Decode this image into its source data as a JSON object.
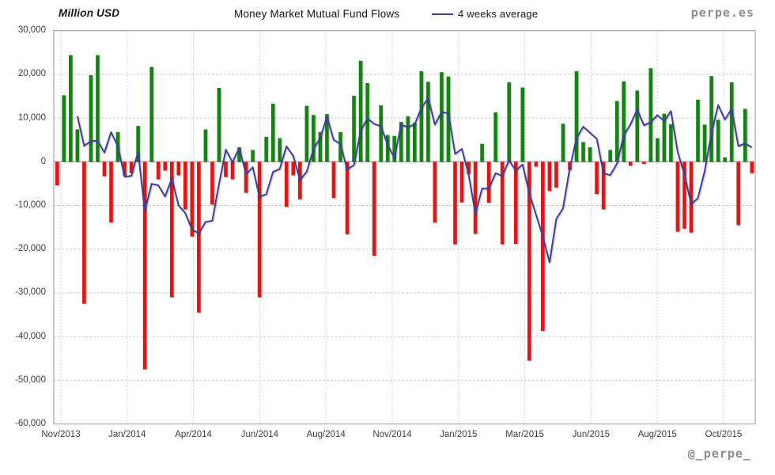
{
  "header": {
    "units_label": "Million USD",
    "title": "Money Market Mutual Fund Flows",
    "legend_label": "4 weeks average",
    "watermark": "perpe.es",
    "handle": "@_perpe_"
  },
  "chart_data": {
    "type": "bar",
    "title": "Money Market Mutual Fund Flows",
    "ylabel": "Million USD",
    "ylim": [
      -60000,
      30000
    ],
    "y_tick_step": 10000,
    "y_tick_labels": [
      "30,000",
      "20,000",
      "10,000",
      "0",
      "-10,000",
      "-20,000",
      "-30,000",
      "-40,000",
      "-50,000",
      "-60,000"
    ],
    "x_tick_labels": [
      "Nov/2013",
      "Jan/2014",
      "Apr/2014",
      "Jun/2014",
      "Aug/2014",
      "Nov/2014",
      "Jan/2015",
      "Mar/2015",
      "Jun/2015",
      "Aug/2015",
      "Oct/2015"
    ],
    "grid": true,
    "legend_position": "top",
    "colors": {
      "positive_bar": "#178217",
      "negative_bar": "#e01212",
      "average_line": "#40409a"
    },
    "series": [
      {
        "name": "Weekly money market mutual fund flows (Million USD)",
        "type": "bar",
        "values": [
          -5400,
          15200,
          24400,
          7400,
          -32500,
          19800,
          24400,
          -3300,
          -13900,
          6800,
          -3200,
          -2600,
          8200,
          -47500,
          21700,
          -4000,
          -2000,
          -31000,
          -3100,
          -10900,
          -17100,
          -34500,
          7400,
          -9800,
          16900,
          -3500,
          -4000,
          3300,
          -7100,
          2700,
          -31000,
          5700,
          13300,
          5400,
          -10300,
          -3100,
          -8600,
          12800,
          10700,
          6800,
          10900,
          -8300,
          6800,
          -16600,
          15100,
          23100,
          18000,
          -21500,
          12900,
          6100,
          5900,
          9100,
          10400,
          8900,
          20700,
          18300,
          -13900,
          20500,
          19500,
          -18900,
          -9300,
          -2800,
          -16500,
          4100,
          -9400,
          11300,
          -18900,
          18200,
          -18800,
          17000,
          -45500,
          -1100,
          -38700,
          -6700,
          -5900,
          8700,
          -1900,
          20700,
          4500,
          3300,
          -7400,
          -10900,
          2700,
          13900,
          18400,
          -900,
          16300,
          -500,
          21400,
          5400,
          11000,
          8600,
          -16000,
          -15300,
          -16200,
          14200,
          8500,
          19600,
          9600,
          1000,
          18200,
          -14500,
          12100,
          -2600
        ]
      },
      {
        "name": "4 weeks average",
        "type": "line",
        "derived": "rolling_mean_window_4_of_bar_series"
      }
    ]
  }
}
